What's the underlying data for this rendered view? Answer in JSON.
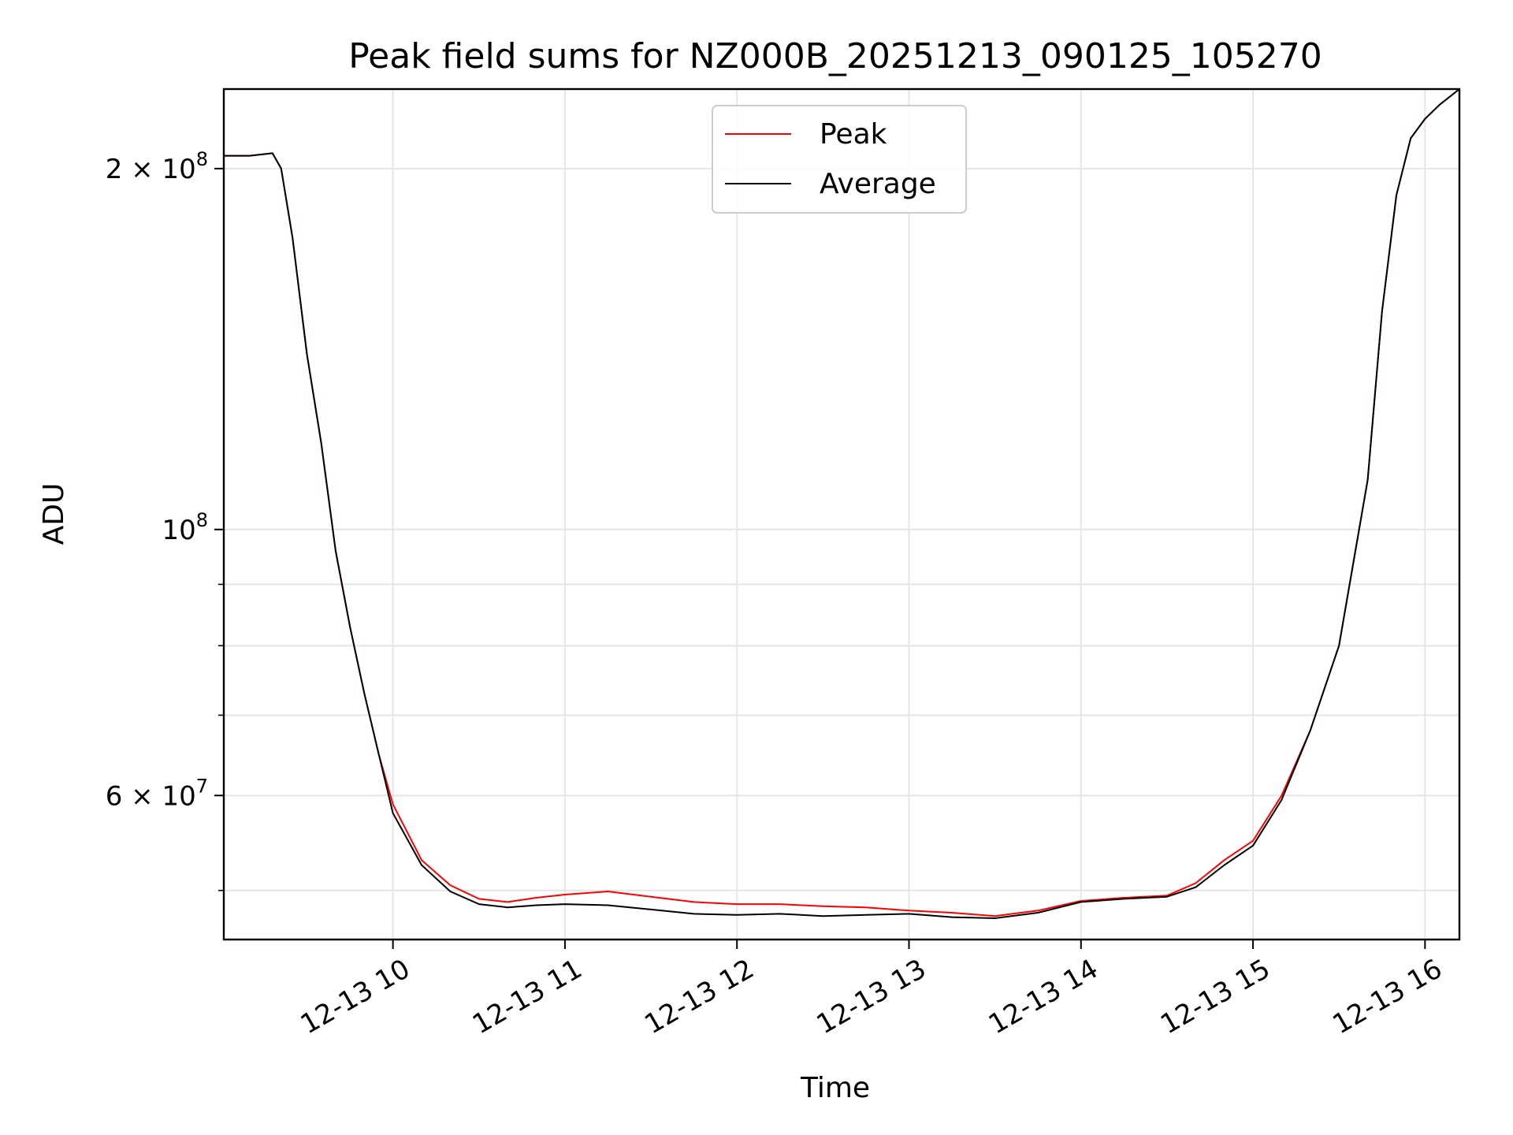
{
  "chart_data": {
    "type": "line",
    "title": "Peak field sums for NZ000B_20251213_090125_105270",
    "xlabel": "Time",
    "ylabel": "ADU",
    "yscale": "log",
    "xlim": [
      "2025-12-13 09:01",
      "2025-12-13 16:12"
    ],
    "ylim": [
      45500000,
      233000000
    ],
    "grid": true,
    "legend_position": "top-center",
    "colors": {
      "peak": "#ff0000",
      "average": "#000000"
    },
    "x_ticks": [
      {
        "value": "2025-12-13 10:00",
        "label": "12-13 10"
      },
      {
        "value": "2025-12-13 11:00",
        "label": "12-13 11"
      },
      {
        "value": "2025-12-13 12:00",
        "label": "12-13 12"
      },
      {
        "value": "2025-12-13 13:00",
        "label": "12-13 13"
      },
      {
        "value": "2025-12-13 14:00",
        "label": "12-13 14"
      },
      {
        "value": "2025-12-13 15:00",
        "label": "12-13 15"
      },
      {
        "value": "2025-12-13 16:00",
        "label": "12-13 16"
      }
    ],
    "y_ticks_major": [
      {
        "value": 60000000,
        "mantissa": "6 × 10",
        "exponent": "7"
      },
      {
        "value": 100000000,
        "mantissa": "10",
        "exponent": "8"
      },
      {
        "value": 200000000,
        "mantissa": "2 × 10",
        "exponent": "8"
      }
    ],
    "y_ticks_minor": [
      50000000,
      70000000,
      80000000,
      90000000
    ],
    "series": [
      {
        "name": "Peak",
        "x": [
          "2025-12-13 09:01",
          "2025-12-13 09:10",
          "2025-12-13 09:18",
          "2025-12-13 09:21",
          "2025-12-13 09:25",
          "2025-12-13 09:30",
          "2025-12-13 09:35",
          "2025-12-13 09:40",
          "2025-12-13 09:45",
          "2025-12-13 09:50",
          "2025-12-13 09:55",
          "2025-12-13 10:00",
          "2025-12-13 10:10",
          "2025-12-13 10:20",
          "2025-12-13 10:30",
          "2025-12-13 10:40",
          "2025-12-13 10:50",
          "2025-12-13 11:00",
          "2025-12-13 11:15",
          "2025-12-13 11:30",
          "2025-12-13 11:45",
          "2025-12-13 12:00",
          "2025-12-13 12:15",
          "2025-12-13 12:30",
          "2025-12-13 12:45",
          "2025-12-13 13:00",
          "2025-12-13 13:15",
          "2025-12-13 13:30",
          "2025-12-13 13:45",
          "2025-12-13 14:00",
          "2025-12-13 14:15",
          "2025-12-13 14:30",
          "2025-12-13 14:40",
          "2025-12-13 14:50",
          "2025-12-13 15:00",
          "2025-12-13 15:10",
          "2025-12-13 15:20",
          "2025-12-13 15:30",
          "2025-12-13 15:40",
          "2025-12-13 15:45",
          "2025-12-13 15:50",
          "2025-12-13 15:55",
          "2025-12-13 16:00",
          "2025-12-13 16:05",
          "2025-12-13 16:12"
        ],
        "values": [
          205000000,
          205000000,
          206000000,
          200000000,
          175000000,
          140000000,
          118000000,
          96000000,
          83000000,
          73000000,
          65000000,
          59000000,
          53000000,
          50500000,
          49200000,
          48900000,
          49300000,
          49600000,
          49900000,
          49400000,
          48900000,
          48700000,
          48700000,
          48500000,
          48400000,
          48100000,
          47900000,
          47600000,
          48100000,
          49000000,
          49300000,
          49500000,
          50700000,
          53000000,
          55000000,
          60000000,
          68000000,
          80000000,
          110000000,
          152000000,
          190000000,
          212000000,
          220000000,
          226000000,
          233000000
        ]
      },
      {
        "name": "Average",
        "x": [
          "2025-12-13 09:01",
          "2025-12-13 09:10",
          "2025-12-13 09:18",
          "2025-12-13 09:21",
          "2025-12-13 09:25",
          "2025-12-13 09:30",
          "2025-12-13 09:35",
          "2025-12-13 09:40",
          "2025-12-13 09:45",
          "2025-12-13 09:50",
          "2025-12-13 09:55",
          "2025-12-13 10:00",
          "2025-12-13 10:10",
          "2025-12-13 10:20",
          "2025-12-13 10:30",
          "2025-12-13 10:40",
          "2025-12-13 10:50",
          "2025-12-13 11:00",
          "2025-12-13 11:15",
          "2025-12-13 11:30",
          "2025-12-13 11:45",
          "2025-12-13 12:00",
          "2025-12-13 12:15",
          "2025-12-13 12:30",
          "2025-12-13 12:45",
          "2025-12-13 13:00",
          "2025-12-13 13:15",
          "2025-12-13 13:30",
          "2025-12-13 13:45",
          "2025-12-13 14:00",
          "2025-12-13 14:15",
          "2025-12-13 14:30",
          "2025-12-13 14:40",
          "2025-12-13 14:50",
          "2025-12-13 15:00",
          "2025-12-13 15:10",
          "2025-12-13 15:20",
          "2025-12-13 15:30",
          "2025-12-13 15:40",
          "2025-12-13 15:45",
          "2025-12-13 15:50",
          "2025-12-13 15:55",
          "2025-12-13 16:00",
          "2025-12-13 16:05",
          "2025-12-13 16:12"
        ],
        "values": [
          205000000,
          205000000,
          206000000,
          200000000,
          175000000,
          140000000,
          118000000,
          96000000,
          83000000,
          73000000,
          65000000,
          58000000,
          52500000,
          49900000,
          48700000,
          48400000,
          48600000,
          48700000,
          48600000,
          48200000,
          47800000,
          47700000,
          47800000,
          47600000,
          47700000,
          47800000,
          47500000,
          47400000,
          47900000,
          48900000,
          49200000,
          49400000,
          50300000,
          52500000,
          54500000,
          59500000,
          68000000,
          80000000,
          110000000,
          152000000,
          190000000,
          212000000,
          220000000,
          226000000,
          233000000
        ]
      }
    ]
  }
}
